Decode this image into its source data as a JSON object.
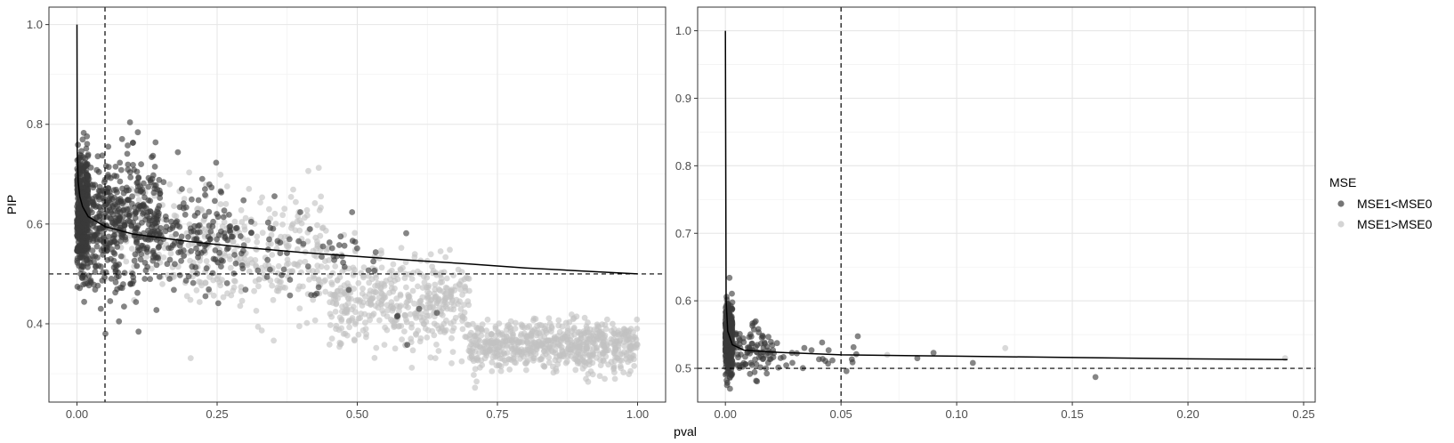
{
  "chart_data": [
    {
      "type": "scatter",
      "panel": "left",
      "xlim": [
        -0.05,
        1.05
      ],
      "ylim": [
        0.243,
        1.035
      ],
      "x_ticks": [
        0.0,
        0.25,
        0.5,
        0.75,
        1.0
      ],
      "x_tick_labels": [
        "0.00",
        "0.25",
        "0.50",
        "0.75",
        "1.00"
      ],
      "y_ticks": [
        0.4,
        0.6,
        0.8,
        1.0
      ],
      "y_tick_labels": [
        "0.4",
        "0.6",
        "0.8",
        "1.0"
      ],
      "ylabel": "PIP",
      "grid": true,
      "reference_lines": {
        "vertical_x": 0.05,
        "horizontal_y": 0.5,
        "style": "dashed"
      },
      "fitted_curve": {
        "x": [
          0.0,
          0.0005,
          0.002,
          0.005,
          0.01,
          0.02,
          0.05,
          0.1,
          0.2,
          0.3,
          0.4,
          0.5,
          0.6,
          0.7,
          0.8,
          0.9,
          1.0
        ],
        "y": [
          1.0,
          0.74,
          0.685,
          0.655,
          0.635,
          0.615,
          0.595,
          0.58,
          0.565,
          0.553,
          0.543,
          0.535,
          0.527,
          0.52,
          0.512,
          0.506,
          0.5
        ]
      },
      "series": [
        {
          "name": "MSE1<MSE0",
          "color": "#3a3a3a",
          "clusters": [
            {
              "x_range": [
                0.0,
                0.02
              ],
              "y_mean": 0.62,
              "y_sd": 0.06,
              "count": 500
            },
            {
              "x_range": [
                0.02,
                0.15
              ],
              "y_mean": 0.6,
              "y_sd": 0.065,
              "count": 450
            },
            {
              "x_range": [
                0.15,
                0.3
              ],
              "y_mean": 0.58,
              "y_sd": 0.06,
              "count": 140
            },
            {
              "x_range": [
                0.3,
                0.5
              ],
              "y_mean": 0.54,
              "y_sd": 0.055,
              "count": 50
            },
            {
              "x_range": [
                0.5,
                0.65
              ],
              "y_mean": 0.45,
              "y_sd": 0.05,
              "count": 10
            }
          ]
        },
        {
          "name": "MSE1>MSE0",
          "color": "#c2c2c2",
          "clusters": [
            {
              "x_range": [
                0.05,
                0.2
              ],
              "y_mean": 0.58,
              "y_sd": 0.055,
              "count": 80
            },
            {
              "x_range": [
                0.2,
                0.45
              ],
              "y_mean": 0.54,
              "y_sd": 0.06,
              "count": 280
            },
            {
              "x_range": [
                0.45,
                0.7
              ],
              "y_mean": 0.44,
              "y_sd": 0.045,
              "count": 450
            },
            {
              "x_range": [
                0.7,
                1.0
              ],
              "y_mean": 0.355,
              "y_sd": 0.025,
              "count": 650
            }
          ]
        }
      ]
    },
    {
      "type": "scatter",
      "panel": "right",
      "xlim": [
        -0.012,
        0.255
      ],
      "ylim": [
        0.45,
        1.035
      ],
      "x_ticks": [
        0.0,
        0.05,
        0.1,
        0.15,
        0.2,
        0.25
      ],
      "x_tick_labels": [
        "0.00",
        "0.05",
        "0.10",
        "0.15",
        "0.20",
        "0.25"
      ],
      "y_ticks": [
        0.5,
        0.6,
        0.7,
        0.8,
        0.9,
        1.0
      ],
      "y_tick_labels": [
        "0.5",
        "0.6",
        "0.7",
        "0.8",
        "0.9",
        "1.0"
      ],
      "grid": true,
      "reference_lines": {
        "vertical_x": 0.05,
        "horizontal_y": 0.5,
        "style": "dashed"
      },
      "fitted_curve": {
        "x": [
          0.0,
          0.0003,
          0.001,
          0.003,
          0.008,
          0.02,
          0.05,
          0.1,
          0.15,
          0.2,
          0.243
        ],
        "y": [
          1.0,
          0.6,
          0.555,
          0.535,
          0.527,
          0.524,
          0.52,
          0.518,
          0.516,
          0.514,
          0.513
        ]
      },
      "series": [
        {
          "name": "MSE1<MSE0",
          "color": "#3a3a3a",
          "clusters": [
            {
              "x_range": [
                0.0,
                0.003
              ],
              "y_mean": 0.545,
              "y_sd": 0.025,
              "count": 420
            },
            {
              "x_range": [
                0.003,
                0.02
              ],
              "y_mean": 0.525,
              "y_sd": 0.018,
              "count": 90
            },
            {
              "x_range": [
                0.02,
                0.06
              ],
              "y_mean": 0.52,
              "y_sd": 0.013,
              "count": 28
            }
          ],
          "points": [
            [
              0.09,
              0.523
            ],
            [
              0.107,
              0.508
            ],
            [
              0.16,
              0.487
            ],
            [
              0.083,
              0.515
            ]
          ]
        },
        {
          "name": "MSE1>MSE0",
          "color": "#c2c2c2",
          "points": [
            [
              0.121,
              0.53
            ],
            [
              0.242,
              0.515
            ],
            [
              0.07,
              0.52
            ]
          ]
        }
      ]
    }
  ],
  "xlabel": "pval",
  "legend": {
    "title": "MSE",
    "placement": "right",
    "items": [
      {
        "label": "MSE1<MSE0",
        "color": "#3a3a3a"
      },
      {
        "label": "MSE1>MSE0",
        "color": "#c2c2c2"
      }
    ]
  }
}
